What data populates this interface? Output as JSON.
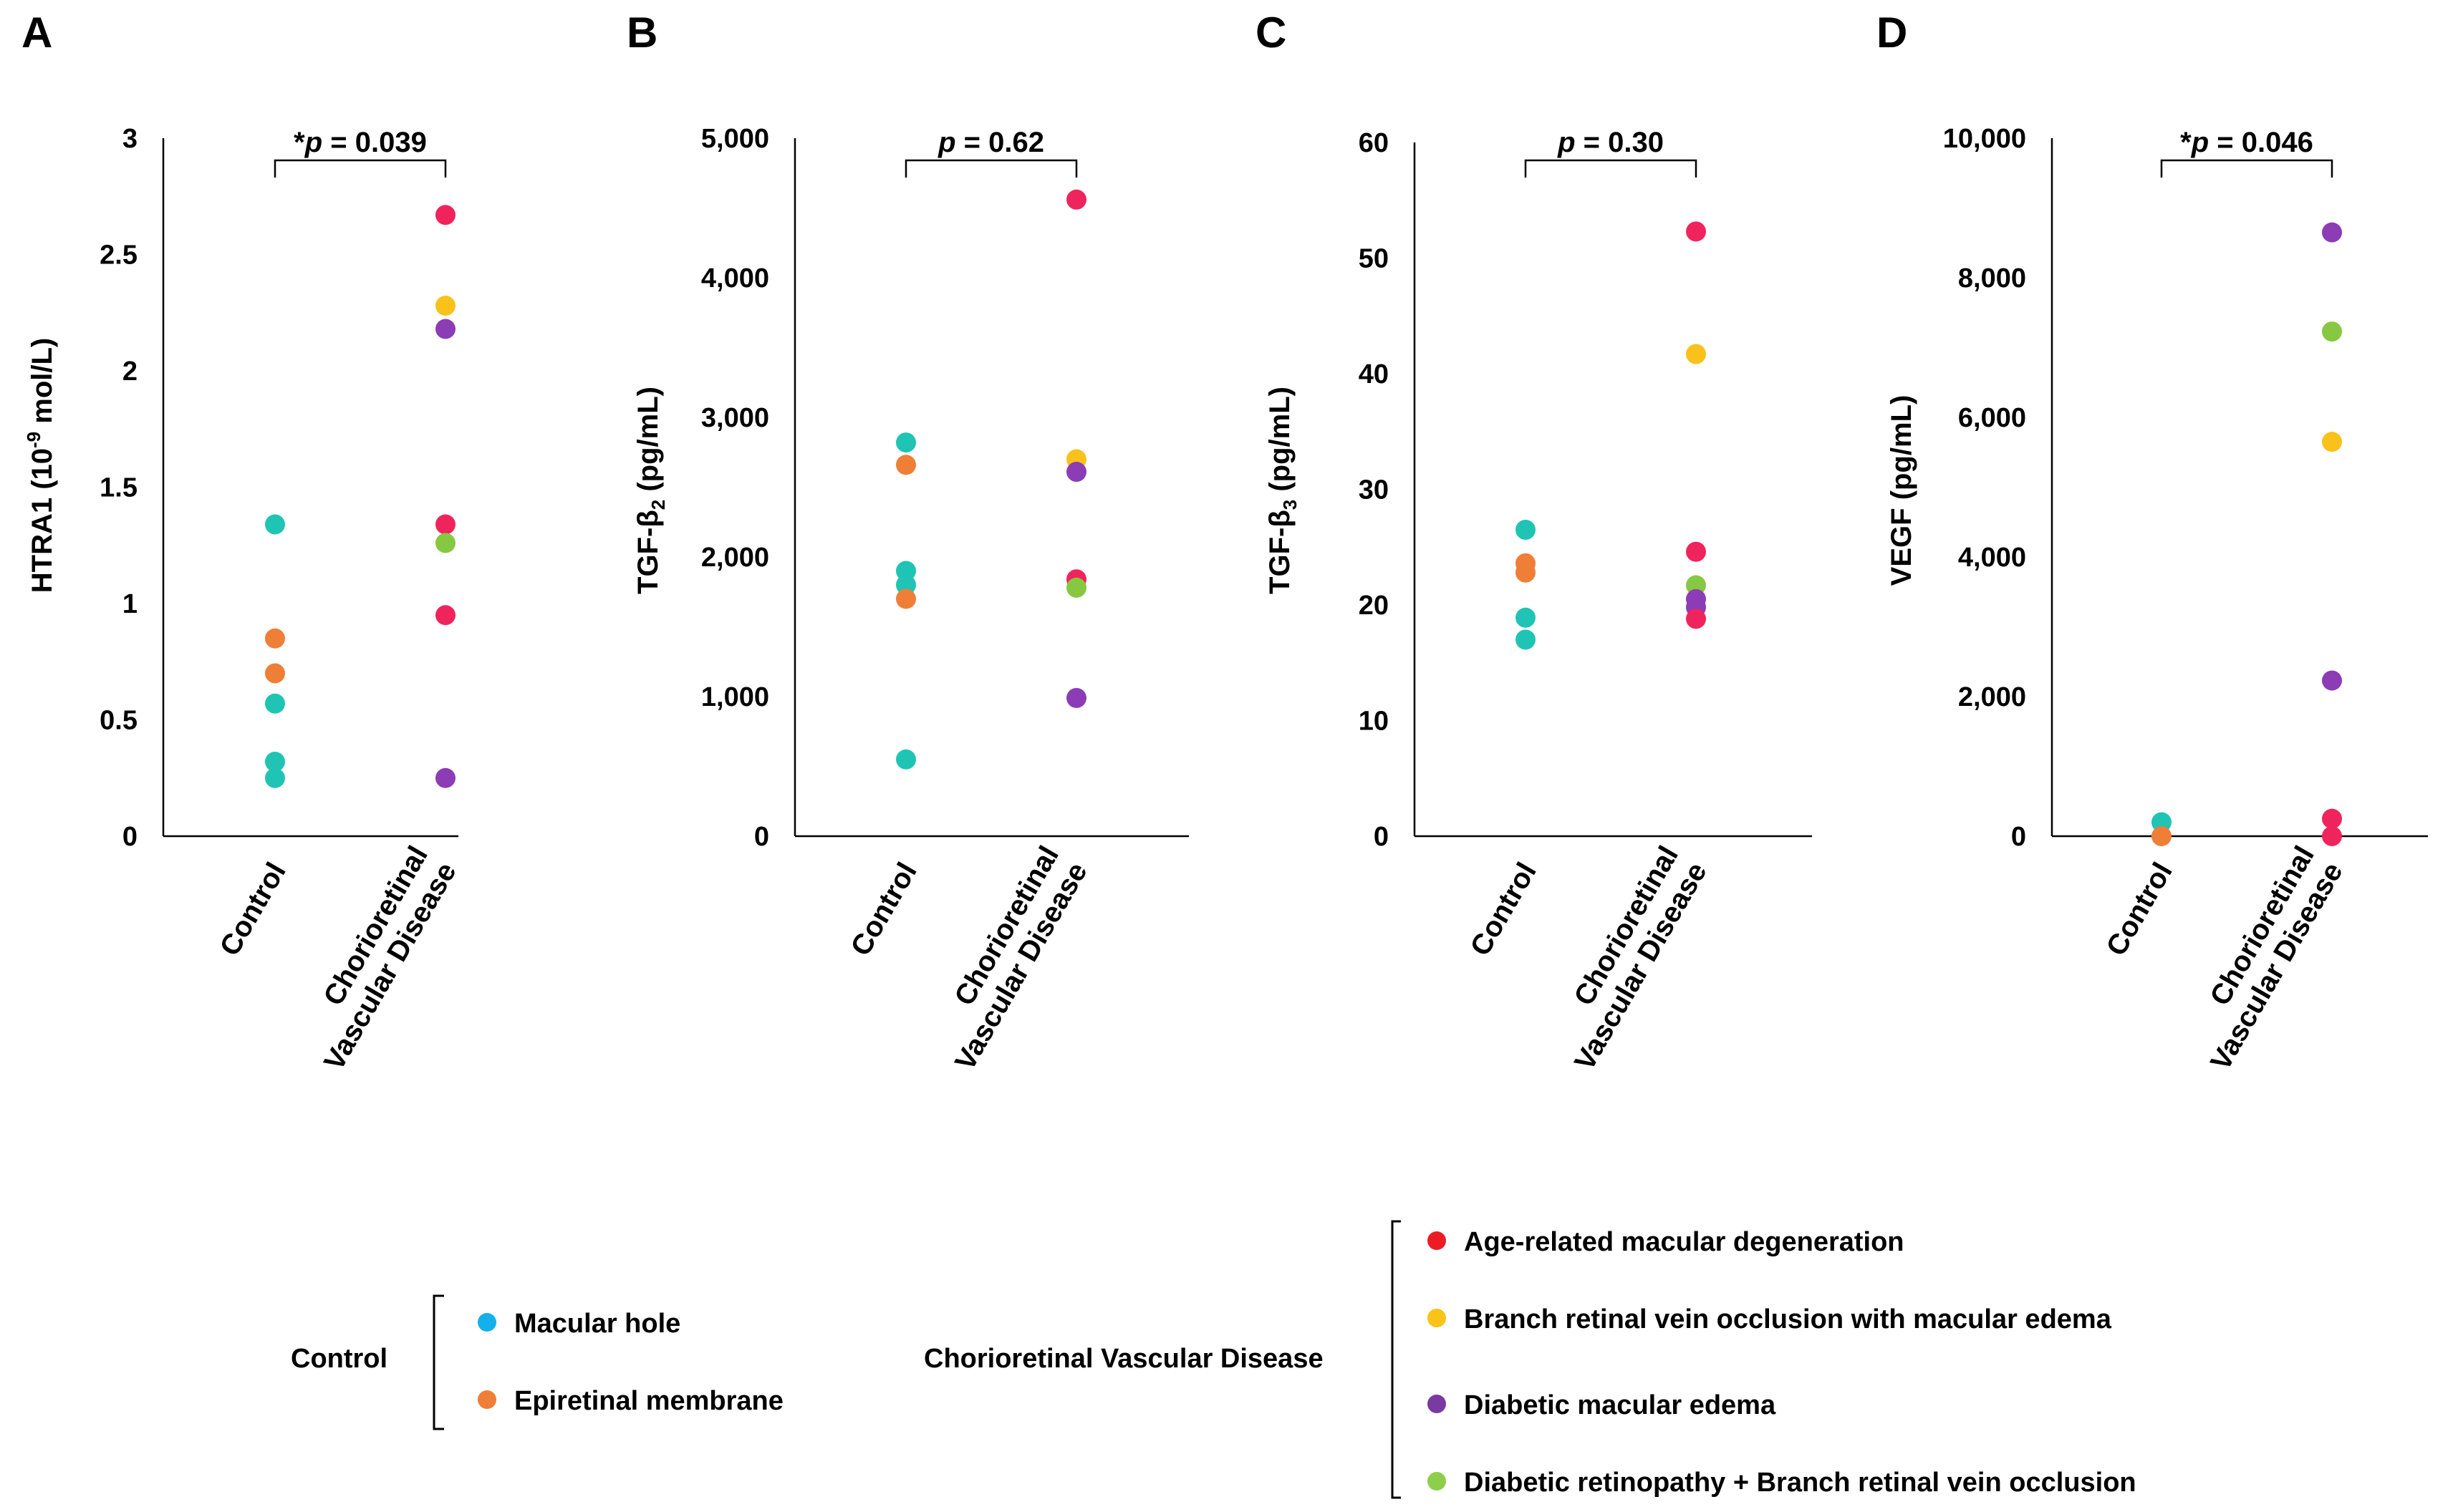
{
  "colors": {
    "macular_hole": "#1fc4b4",
    "epiretinal_membrane": "#ef7e37",
    "amd": "#f0245c",
    "brvo": "#f9c21a",
    "dme": "#8c3cb4",
    "dr_brvo": "#86c842",
    "legend_macular_hole": "#14b0ec",
    "legend_epiretinal_membrane": "#ef7e37",
    "legend_amd": "#ec1c24",
    "legend_brvo": "#fbc217",
    "legend_dme": "#7b3aa2",
    "legend_dr_brvo": "#8dcf4a"
  },
  "chart_data": [
    {
      "panel": "A",
      "type": "scatter",
      "ylabel_main": "HTRA1 (10",
      "ylabel_sup": "-9",
      "ylabel_tail": " mol/L)",
      "ylim": [
        0,
        3
      ],
      "yticks": [
        0,
        0.5,
        1,
        1.5,
        2,
        2.5,
        3
      ],
      "ytick_labels": [
        "0",
        "0.5",
        "1",
        "1.5",
        "2",
        "2.5",
        "3"
      ],
      "categories": [
        "Control",
        "Chorioretinal Vascular Disease"
      ],
      "category_lines": [
        [
          "Control"
        ],
        [
          "Chorioretinal",
          "Vascular Disease"
        ]
      ],
      "significance": {
        "star": "*",
        "p": "p",
        "rest": " = 0.039"
      },
      "points": [
        {
          "group": 0,
          "value": 1.34,
          "type": "macular_hole"
        },
        {
          "group": 0,
          "value": 0.57,
          "type": "macular_hole"
        },
        {
          "group": 0,
          "value": 0.32,
          "type": "macular_hole"
        },
        {
          "group": 0,
          "value": 0.25,
          "type": "macular_hole"
        },
        {
          "group": 0,
          "value": 0.85,
          "type": "epiretinal_membrane"
        },
        {
          "group": 0,
          "value": 0.7,
          "type": "epiretinal_membrane"
        },
        {
          "group": 1,
          "value": 2.67,
          "type": "amd"
        },
        {
          "group": 1,
          "value": 2.28,
          "type": "brvo"
        },
        {
          "group": 1,
          "value": 2.18,
          "type": "dme"
        },
        {
          "group": 1,
          "value": 1.34,
          "type": "amd"
        },
        {
          "group": 1,
          "value": 1.26,
          "type": "dr_brvo"
        },
        {
          "group": 1,
          "value": 0.95,
          "type": "amd"
        },
        {
          "group": 1,
          "value": 0.25,
          "type": "dme"
        }
      ]
    },
    {
      "panel": "B",
      "type": "scatter",
      "ylabel_main": "TGF-β",
      "ylabel_sub": "2",
      "ylabel_tail": " (pg/mL)",
      "ylim": [
        0,
        5000
      ],
      "yticks": [
        0,
        1000,
        2000,
        3000,
        4000,
        5000
      ],
      "ytick_labels": [
        "0",
        "1,000",
        "2,000",
        "3,000",
        "4,000",
        "5,000"
      ],
      "categories": [
        "Control",
        "Chorioretinal Vascular Disease"
      ],
      "category_lines": [
        [
          "Control"
        ],
        [
          "Chorioretinal",
          "Vascular Disease"
        ]
      ],
      "significance": {
        "star": "",
        "p": "p",
        "rest": " = 0.62"
      },
      "points": [
        {
          "group": 0,
          "value": 2820,
          "type": "macular_hole"
        },
        {
          "group": 0,
          "value": 1900,
          "type": "macular_hole"
        },
        {
          "group": 0,
          "value": 1800,
          "type": "macular_hole"
        },
        {
          "group": 0,
          "value": 550,
          "type": "macular_hole"
        },
        {
          "group": 0,
          "value": 2660,
          "type": "epiretinal_membrane"
        },
        {
          "group": 0,
          "value": 1700,
          "type": "epiretinal_membrane"
        },
        {
          "group": 1,
          "value": 4560,
          "type": "amd"
        },
        {
          "group": 1,
          "value": 2700,
          "type": "brvo"
        },
        {
          "group": 1,
          "value": 2610,
          "type": "dme"
        },
        {
          "group": 1,
          "value": 1840,
          "type": "amd"
        },
        {
          "group": 1,
          "value": 1780,
          "type": "dr_brvo"
        },
        {
          "group": 1,
          "value": 990,
          "type": "dme"
        }
      ]
    },
    {
      "panel": "C",
      "type": "scatter",
      "ylabel_main": "TGF-β",
      "ylabel_sub": "3",
      "ylabel_tail": " (pg/mL)",
      "ylim": [
        0,
        60
      ],
      "yticks": [
        0,
        10,
        20,
        30,
        40,
        50,
        60
      ],
      "ytick_labels": [
        "0",
        "10",
        "20",
        "30",
        "40",
        "50",
        "60"
      ],
      "categories": [
        "Control",
        "Chorioretinal Vascular Disease"
      ],
      "category_lines": [
        [
          "Control"
        ],
        [
          "Chorioretinal",
          "Vascular Disease"
        ]
      ],
      "significance": {
        "star": "",
        "p": "p",
        "rest": " = 0.30"
      },
      "points": [
        {
          "group": 0,
          "value": 26.5,
          "type": "macular_hole"
        },
        {
          "group": 0,
          "value": 18.9,
          "type": "macular_hole"
        },
        {
          "group": 0,
          "value": 17.0,
          "type": "macular_hole"
        },
        {
          "group": 0,
          "value": 23.6,
          "type": "epiretinal_membrane"
        },
        {
          "group": 0,
          "value": 22.8,
          "type": "epiretinal_membrane"
        },
        {
          "group": 1,
          "value": 52.3,
          "type": "amd"
        },
        {
          "group": 1,
          "value": 41.7,
          "type": "brvo"
        },
        {
          "group": 1,
          "value": 24.6,
          "type": "amd"
        },
        {
          "group": 1,
          "value": 21.7,
          "type": "dr_brvo"
        },
        {
          "group": 1,
          "value": 20.5,
          "type": "dme"
        },
        {
          "group": 1,
          "value": 19.8,
          "type": "dme"
        },
        {
          "group": 1,
          "value": 18.8,
          "type": "amd"
        }
      ]
    },
    {
      "panel": "D",
      "type": "scatter",
      "ylabel_main": "VEGF (pg/mL)",
      "ylim": [
        0,
        10000
      ],
      "yticks": [
        0,
        2000,
        4000,
        6000,
        8000,
        10000
      ],
      "ytick_labels": [
        "0",
        "2,000",
        "4,000",
        "6,000",
        "8,000",
        "10,000"
      ],
      "categories": [
        "Control",
        "Chorioretinal Vascular Disease"
      ],
      "category_lines": [
        [
          "Control"
        ],
        [
          "Chorioretinal",
          "Vascular Disease"
        ]
      ],
      "significance": {
        "star": "*",
        "p": "p",
        "rest": " = 0.046"
      },
      "points": [
        {
          "group": 0,
          "value": 200,
          "type": "macular_hole"
        },
        {
          "group": 0,
          "value": 0,
          "type": "epiretinal_membrane"
        },
        {
          "group": 1,
          "value": 8650,
          "type": "dme"
        },
        {
          "group": 1,
          "value": 7230,
          "type": "dr_brvo"
        },
        {
          "group": 1,
          "value": 5650,
          "type": "brvo"
        },
        {
          "group": 1,
          "value": 2230,
          "type": "dme"
        },
        {
          "group": 1,
          "value": 250,
          "type": "amd"
        },
        {
          "group": 1,
          "value": 0,
          "type": "amd"
        }
      ]
    }
  ],
  "legend": {
    "control_group": {
      "title": "Control",
      "items": [
        {
          "label": "Macular hole",
          "color_key": "legend_macular_hole"
        },
        {
          "label": "Epiretinal membrane",
          "color_key": "legend_epiretinal_membrane"
        }
      ]
    },
    "disease_group": {
      "title": "Chorioretinal Vascular Disease",
      "items": [
        {
          "label": "Age-related macular degeneration",
          "color_key": "legend_amd"
        },
        {
          "label": "Branch retinal vein occlusion with macular edema",
          "color_key": "legend_brvo"
        },
        {
          "label": "Diabetic macular edema",
          "color_key": "legend_dme"
        },
        {
          "label": "Diabetic retinopathy + Branch retinal vein occlusion",
          "color_key": "legend_dr_brvo"
        }
      ]
    }
  }
}
